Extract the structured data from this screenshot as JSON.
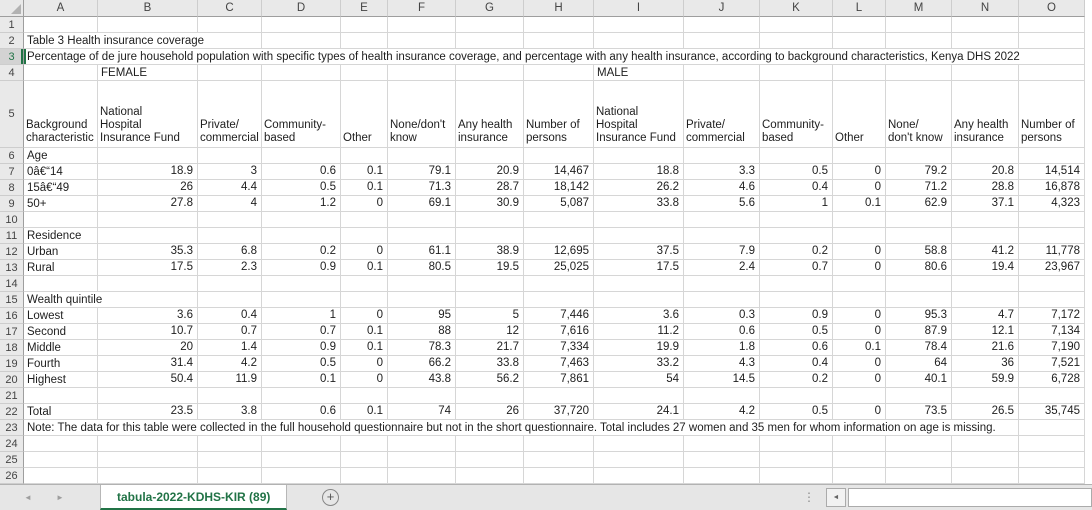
{
  "sheet": {
    "column_letters": [
      "A",
      "B",
      "C",
      "D",
      "E",
      "F",
      "G",
      "H",
      "I",
      "J",
      "K",
      "L",
      "M",
      "N",
      "O"
    ],
    "num_rows": 26,
    "title": {
      "cell": "A2",
      "text": "Table 3 Health insurance coverage"
    },
    "subtitle": {
      "cell": "A3",
      "text": "Percentage of de jure household population with specific types of health insurance coverage, and percentage with any health insurance, according to background characteristics, Kenya DHS 2022"
    },
    "group_headers": [
      {
        "cell": "B4",
        "text": "FEMALE"
      },
      {
        "cell": "I4",
        "text": "MALE"
      }
    ],
    "column_header_row": {
      "row": 5,
      "cells": {
        "A": "Background\ncharacteristic",
        "B": "National\nHospital\nInsurance Fund",
        "C": "Private/\ncommercial",
        "D": "Community-\nbased",
        "E": "Other",
        "F": "None/don't\nknow",
        "G": "Any health\ninsurance",
        "H": "Number of\npersons",
        "I": "National\nHospital\nInsurance Fund",
        "J": "Private/\ncommercial",
        "K": "Community-\nbased",
        "L": "Other",
        "M": "None/\ndon't know",
        "N": "Any health\ninsurance",
        "O": "Number of\npersons"
      }
    },
    "data_rows": [
      {
        "row": 6,
        "label": "Age",
        "values": []
      },
      {
        "row": 7,
        "label": "0â€“14",
        "values": [
          "18.9",
          "3",
          "0.6",
          "0.1",
          "79.1",
          "20.9",
          "14,467",
          "18.8",
          "3.3",
          "0.5",
          "0",
          "79.2",
          "20.8",
          "14,514"
        ]
      },
      {
        "row": 8,
        "label": "15â€“49",
        "values": [
          "26",
          "4.4",
          "0.5",
          "0.1",
          "71.3",
          "28.7",
          "18,142",
          "26.2",
          "4.6",
          "0.4",
          "0",
          "71.2",
          "28.8",
          "16,878"
        ]
      },
      {
        "row": 9,
        "label": "50+",
        "values": [
          "27.8",
          "4",
          "1.2",
          "0",
          "69.1",
          "30.9",
          "5,087",
          "33.8",
          "5.6",
          "1",
          "0.1",
          "62.9",
          "37.1",
          "4,323"
        ]
      },
      {
        "row": 11,
        "label": "Residence",
        "values": []
      },
      {
        "row": 12,
        "label": "Urban",
        "values": [
          "35.3",
          "6.8",
          "0.2",
          "0",
          "61.1",
          "38.9",
          "12,695",
          "37.5",
          "7.9",
          "0.2",
          "0",
          "58.8",
          "41.2",
          "11,778"
        ]
      },
      {
        "row": 13,
        "label": "Rural",
        "values": [
          "17.5",
          "2.3",
          "0.9",
          "0.1",
          "80.5",
          "19.5",
          "25,025",
          "17.5",
          "2.4",
          "0.7",
          "0",
          "80.6",
          "19.4",
          "23,967"
        ]
      },
      {
        "row": 15,
        "label": "Wealth quintile",
        "values": []
      },
      {
        "row": 16,
        "label": "Lowest",
        "values": [
          "3.6",
          "0.4",
          "1",
          "0",
          "95",
          "5",
          "7,446",
          "3.6",
          "0.3",
          "0.9",
          "0",
          "95.3",
          "4.7",
          "7,172"
        ]
      },
      {
        "row": 17,
        "label": "Second",
        "values": [
          "10.7",
          "0.7",
          "0.7",
          "0.1",
          "88",
          "12",
          "7,616",
          "11.2",
          "0.6",
          "0.5",
          "0",
          "87.9",
          "12.1",
          "7,134"
        ]
      },
      {
        "row": 18,
        "label": "Middle",
        "values": [
          "20",
          "1.4",
          "0.9",
          "0.1",
          "78.3",
          "21.7",
          "7,334",
          "19.9",
          "1.8",
          "0.6",
          "0.1",
          "78.4",
          "21.6",
          "7,190"
        ]
      },
      {
        "row": 19,
        "label": "Fourth",
        "values": [
          "31.4",
          "4.2",
          "0.5",
          "0",
          "66.2",
          "33.8",
          "7,463",
          "33.2",
          "4.3",
          "0.4",
          "0",
          "64",
          "36",
          "7,521"
        ]
      },
      {
        "row": 20,
        "label": "Highest",
        "values": [
          "50.4",
          "11.9",
          "0.1",
          "0",
          "43.8",
          "56.2",
          "7,861",
          "54",
          "14.5",
          "0.2",
          "0",
          "40.1",
          "59.9",
          "6,728"
        ]
      },
      {
        "row": 22,
        "label": "Total",
        "values": [
          "23.5",
          "3.8",
          "0.6",
          "0.1",
          "74",
          "26",
          "37,720",
          "24.1",
          "4.2",
          "0.5",
          "0",
          "73.5",
          "26.5",
          "35,745"
        ]
      }
    ],
    "note": {
      "cell": "A23",
      "text": "Note: The data for this table were collected in the full household questionnaire but not in the short questionnaire. Total includes 27 women and 35 men for whom information on age is missing."
    },
    "selection": {
      "active_cell": "A3",
      "highlighted_row": 3
    }
  },
  "tab_bar": {
    "active_tab": "tabula-2022-KDHS-KIR (89)",
    "nav_prev": "◄",
    "nav_next": "►",
    "new_sheet": "+",
    "overflow_dots": "⋮",
    "scroll_left_arrow": "◄"
  },
  "colors": {
    "tab_green": "#217346",
    "grid_line": "#d6d6d6",
    "header_bg": "#e9e9e9"
  }
}
